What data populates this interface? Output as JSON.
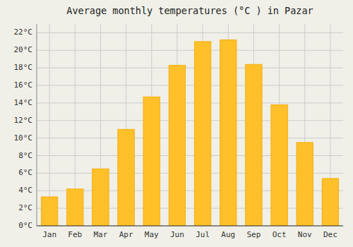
{
  "chart_data": {
    "type": "bar",
    "title": "Average monthly temperatures (°C ) in Pazar",
    "categories": [
      "Jan",
      "Feb",
      "Mar",
      "Apr",
      "May",
      "Jun",
      "Jul",
      "Aug",
      "Sep",
      "Oct",
      "Nov",
      "Dec"
    ],
    "values": [
      3.3,
      4.2,
      6.5,
      11.0,
      14.7,
      18.3,
      21.0,
      21.2,
      18.4,
      13.8,
      9.5,
      5.4
    ],
    "color": "#FFC02A",
    "ylim": [
      0,
      23
    ],
    "yticks": [
      {
        "value": 0,
        "label": "0°C"
      },
      {
        "value": 2,
        "label": "2°C"
      },
      {
        "value": 4,
        "label": "4°C"
      },
      {
        "value": 6,
        "label": "6°C"
      },
      {
        "value": 8,
        "label": "8°C"
      },
      {
        "value": 10,
        "label": "10°C"
      },
      {
        "value": 12,
        "label": "12°C"
      },
      {
        "value": 14,
        "label": "14°C"
      },
      {
        "value": 16,
        "label": "16°C"
      },
      {
        "value": 18,
        "label": "18°C"
      },
      {
        "value": 20,
        "label": "20°C"
      },
      {
        "value": 22,
        "label": "22°C"
      }
    ],
    "grid": true
  }
}
